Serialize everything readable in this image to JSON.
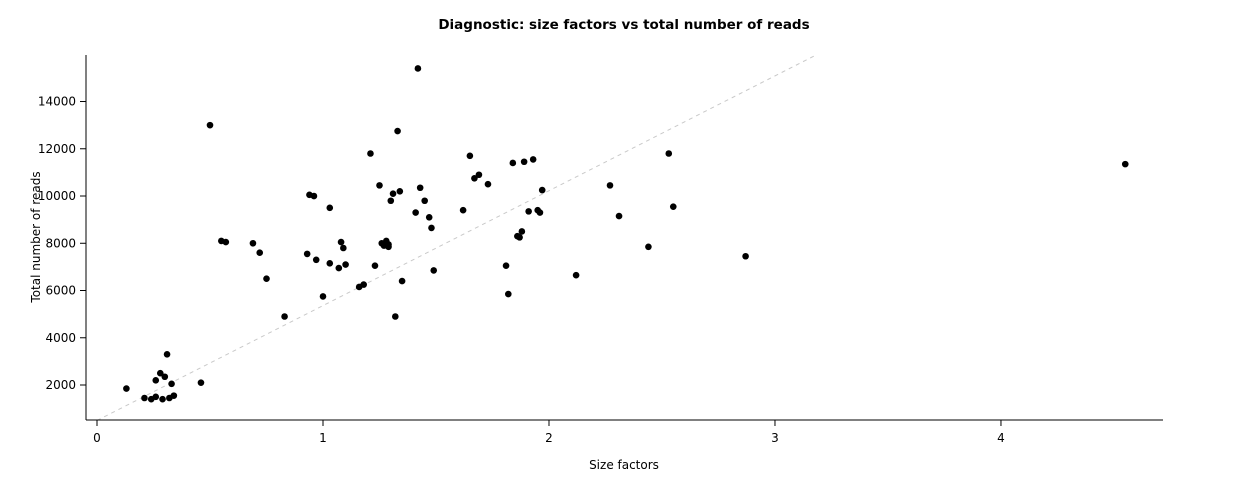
{
  "chart_data": {
    "type": "scatter",
    "title": "Diagnostic: size factors vs total number of reads",
    "xlabel": "Size factors",
    "ylabel": "Total number of reads",
    "x_ticks": [
      0,
      1,
      2,
      3,
      4
    ],
    "y_ticks": [
      2000,
      4000,
      6000,
      8000,
      10000,
      12000,
      14000
    ],
    "xlim": [
      -0.0487,
      4.717
    ],
    "ylim": [
      519,
      15969
    ],
    "grid": false,
    "legend": "none",
    "point_color": "#000000",
    "axis_color": "#000000",
    "trend_line": {
      "x1": 0,
      "y1": 500,
      "x2": 3.25,
      "y2": 16300,
      "color": "#c9c9c9",
      "dash": "4 4"
    },
    "points": [
      [
        0.13,
        1850
      ],
      [
        0.21,
        1450
      ],
      [
        0.24,
        1400
      ],
      [
        0.26,
        1500
      ],
      [
        0.26,
        2200
      ],
      [
        0.28,
        2500
      ],
      [
        0.29,
        1400
      ],
      [
        0.3,
        2350
      ],
      [
        0.31,
        3300
      ],
      [
        0.32,
        1450
      ],
      [
        0.33,
        2050
      ],
      [
        0.34,
        1550
      ],
      [
        0.46,
        2100
      ],
      [
        0.5,
        13000
      ],
      [
        0.55,
        8100
      ],
      [
        0.57,
        8050
      ],
      [
        0.69,
        8000
      ],
      [
        0.72,
        7600
      ],
      [
        0.75,
        6500
      ],
      [
        0.83,
        4900
      ],
      [
        0.93,
        7550
      ],
      [
        0.94,
        10050
      ],
      [
        0.96,
        10000
      ],
      [
        0.97,
        7300
      ],
      [
        1.0,
        5750
      ],
      [
        1.03,
        9500
      ],
      [
        1.03,
        7150
      ],
      [
        1.07,
        6950
      ],
      [
        1.08,
        8050
      ],
      [
        1.09,
        7800
      ],
      [
        1.1,
        7100
      ],
      [
        1.16,
        6150
      ],
      [
        1.18,
        6250
      ],
      [
        1.21,
        11800
      ],
      [
        1.23,
        7050
      ],
      [
        1.25,
        10450
      ],
      [
        1.26,
        8000
      ],
      [
        1.27,
        7900
      ],
      [
        1.28,
        8100
      ],
      [
        1.29,
        7950
      ],
      [
        1.29,
        7850
      ],
      [
        1.3,
        9800
      ],
      [
        1.31,
        10100
      ],
      [
        1.32,
        4900
      ],
      [
        1.33,
        12750
      ],
      [
        1.34,
        10200
      ],
      [
        1.35,
        6400
      ],
      [
        1.41,
        9300
      ],
      [
        1.42,
        15400
      ],
      [
        1.43,
        10350
      ],
      [
        1.45,
        9800
      ],
      [
        1.47,
        9100
      ],
      [
        1.48,
        8650
      ],
      [
        1.49,
        6850
      ],
      [
        1.62,
        9400
      ],
      [
        1.65,
        11700
      ],
      [
        1.67,
        10750
      ],
      [
        1.69,
        10900
      ],
      [
        1.73,
        10500
      ],
      [
        1.81,
        7050
      ],
      [
        1.82,
        5850
      ],
      [
        1.84,
        11400
      ],
      [
        1.86,
        8300
      ],
      [
        1.87,
        8250
      ],
      [
        1.88,
        8500
      ],
      [
        1.89,
        11450
      ],
      [
        1.91,
        9350
      ],
      [
        1.93,
        11550
      ],
      [
        1.95,
        9400
      ],
      [
        1.96,
        9300
      ],
      [
        1.97,
        10250
      ],
      [
        2.12,
        6650
      ],
      [
        2.27,
        10450
      ],
      [
        2.31,
        9150
      ],
      [
        2.44,
        7850
      ],
      [
        2.53,
        11800
      ],
      [
        2.55,
        9550
      ],
      [
        2.87,
        7450
      ],
      [
        4.55,
        11350
      ]
    ]
  }
}
